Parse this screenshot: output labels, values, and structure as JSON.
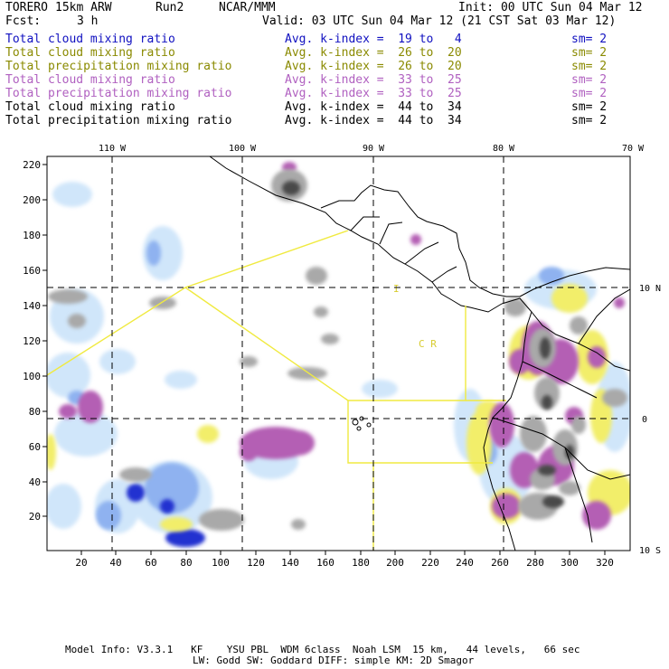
{
  "header": {
    "model": "TORERO",
    "resolution": "15km ARW",
    "run": "Run2",
    "org": "NCAR/MMM",
    "init": "Init: 00 UTC Sun 04 Mar 12",
    "fcst_label": "Fcst:",
    "fcst_value": "3 h",
    "valid": "Valid: 03 UTC Sun 04 Mar 12 (21 CST Sat 03 Mar 12)"
  },
  "fields": [
    {
      "name": "Total cloud mixing ratio",
      "range": "Avg. k-index =  19 to   4",
      "sm": "sm= 2",
      "color": "#1010c0"
    },
    {
      "name": "Total cloud mixing ratio",
      "range": "Avg. k-index =  26 to  20",
      "sm": "sm= 2",
      "color": "#8a8a00"
    },
    {
      "name": "Total precipitation mixing ratio",
      "range": "Avg. k-index =  26 to  20",
      "sm": "sm= 2",
      "color": "#8a8a00"
    },
    {
      "name": "Total cloud mixing ratio",
      "range": "Avg. k-index =  33 to  25",
      "sm": "sm= 2",
      "color": "#b060c0"
    },
    {
      "name": "Total precipitation mixing ratio",
      "range": "Avg. k-index =  33 to  25",
      "sm": "sm= 2",
      "color": "#b060c0"
    },
    {
      "name": "Total cloud mixing ratio",
      "range": "Avg. k-index =  44 to  34",
      "sm": "sm= 2",
      "color": "#000000"
    },
    {
      "name": "Total precipitation mixing ratio",
      "range": "Avg. k-index =  44 to  34",
      "sm": "sm= 2",
      "color": "#000000"
    }
  ],
  "axes": {
    "x_ticks": [
      "20",
      "40",
      "60",
      "80",
      "100",
      "120",
      "140",
      "160",
      "180",
      "200",
      "220",
      "240",
      "260",
      "280",
      "300",
      "320"
    ],
    "y_ticks": [
      "20",
      "40",
      "60",
      "80",
      "100",
      "120",
      "140",
      "160",
      "180",
      "200",
      "220"
    ],
    "lon_labels": [
      "110 W",
      "100 W",
      "90 W",
      "80 W",
      "70 W"
    ],
    "lat_labels": [
      "10 N",
      "0",
      "10 S"
    ]
  },
  "map_labels": {
    "cr": "C R",
    "i_mark": "I"
  },
  "footer": {
    "line1": "Model Info: V3.3.1   KF    YSU PBL  WDM 6class  Noah LSM  15 km,   44 levels,   66 sec",
    "line2": "LW: Godd SW: Goddard DIFF: simple KM: 2D Smagor"
  },
  "colors": {
    "light_blue": "#cfe6fa",
    "blue": "#7fa8f0",
    "dark_blue": "#1e28d2",
    "yellow": "#f2ee6a",
    "purple": "#b45fb4",
    "gray": "#a8a8a8",
    "dark_gray": "#505050",
    "boundary_yellow": "#f0ea40"
  }
}
